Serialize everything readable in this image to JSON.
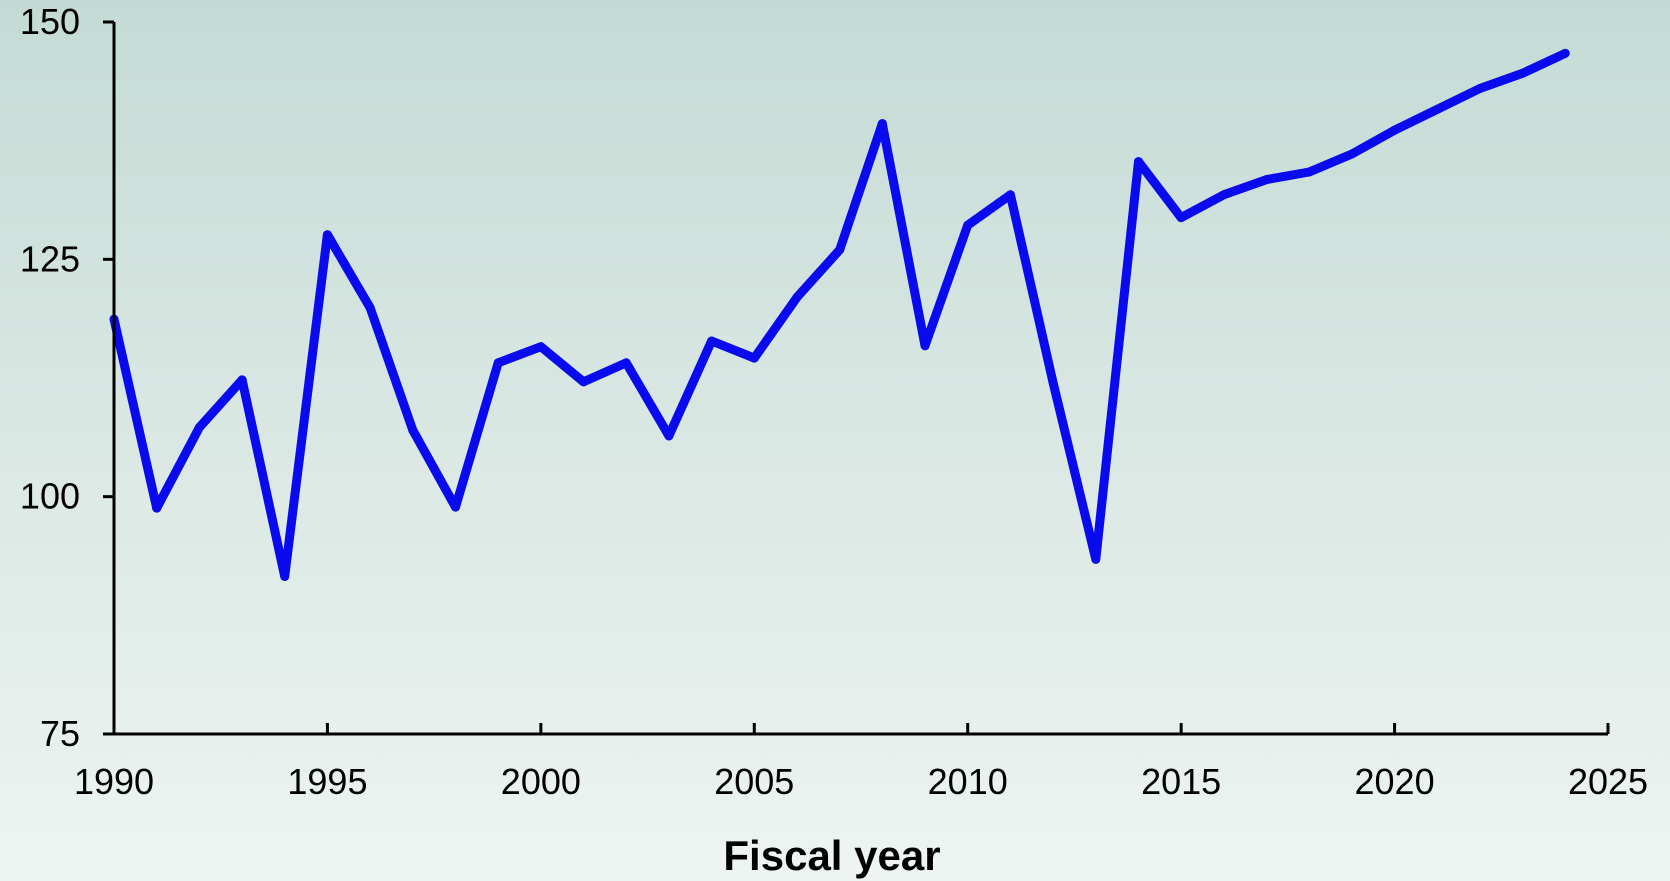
{
  "chart_data": {
    "type": "line",
    "title": "",
    "xlabel": "Fiscal year",
    "ylabel": "",
    "xlim": [
      1990,
      2025
    ],
    "ylim": [
      75,
      150
    ],
    "x_ticks": [
      1990,
      1995,
      2000,
      2005,
      2010,
      2015,
      2020,
      2025
    ],
    "y_ticks": [
      75,
      100,
      125,
      150
    ],
    "grid": false,
    "legend": "none",
    "series": [
      {
        "color": "#0a0aef",
        "x": [
          1990,
          1991,
          1992,
          1993,
          1994,
          1995,
          1996,
          1997,
          1998,
          1999,
          2000,
          2001,
          2002,
          2003,
          2004,
          2005,
          2006,
          2007,
          2008,
          2009,
          2010,
          2011,
          2012,
          2013,
          2014,
          2015,
          2016,
          2017,
          2018,
          2019,
          2020,
          2021,
          2022,
          2023,
          2024
        ],
        "values": [
          118.7,
          98.8,
          107.3,
          112.3,
          91.6,
          127.6,
          119.9,
          107.0,
          98.9,
          114.1,
          115.8,
          112.1,
          114.1,
          106.4,
          116.4,
          114.6,
          121.0,
          126.0,
          139.3,
          115.9,
          128.6,
          131.8,
          112.0,
          93.4,
          135.3,
          129.4,
          131.8,
          133.4,
          134.2,
          136.1,
          138.6,
          140.8,
          143.0,
          144.6,
          146.7
        ]
      }
    ]
  }
}
